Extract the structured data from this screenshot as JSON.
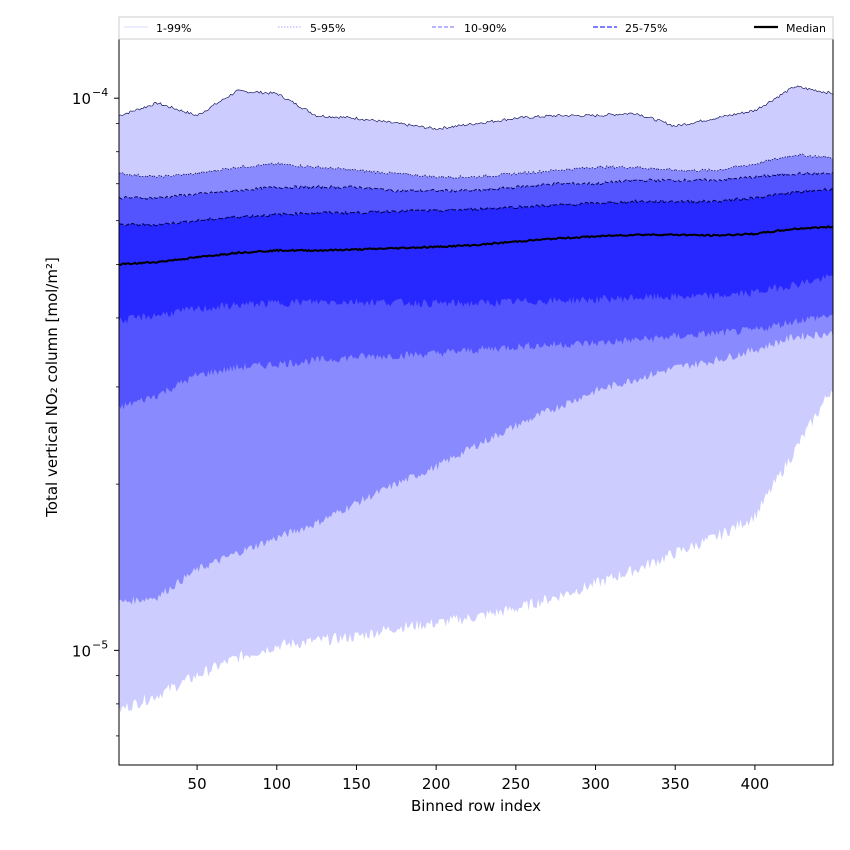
{
  "chart_data": {
    "type": "area",
    "xlabel": "Binned row index",
    "ylabel": "Total vertical NO₂ column [mol/m²]",
    "yscale": "log",
    "xlim": [
      1,
      449
    ],
    "ylim": [
      6.2e-06,
      0.000128
    ],
    "x_ticks": [
      50,
      100,
      150,
      200,
      250,
      300,
      350,
      400
    ],
    "x_tick_labels": [
      "50",
      "100",
      "150",
      "200",
      "250",
      "300",
      "350",
      "400"
    ],
    "y_ticks": [
      1e-05,
      0.0001
    ],
    "y_tick_labels": [
      {
        "base": "10",
        "exp": "−5"
      },
      {
        "base": "10",
        "exp": "−4"
      }
    ],
    "legend_position": "top, above plot",
    "legend": [
      {
        "label": "1-99%",
        "style": "thin solid",
        "color": "#ccccff"
      },
      {
        "label": "5-95%",
        "style": "dotted",
        "color": "#8a8aff"
      },
      {
        "label": "10-90%",
        "style": "dashed",
        "color": "#5454ff"
      },
      {
        "label": "25-75%",
        "style": "dashed",
        "color": "#2727ff"
      },
      {
        "label": "Median",
        "style": "solid thick",
        "color": "#000000"
      }
    ],
    "x": [
      1,
      25,
      50,
      75,
      100,
      125,
      150,
      175,
      200,
      225,
      250,
      275,
      300,
      325,
      350,
      375,
      400,
      425,
      449
    ],
    "bands": [
      {
        "name": "1-99%",
        "color": "#ccccff",
        "upper": [
          9.3e-05,
          9.8e-05,
          9.3e-05,
          0.000103,
          0.000102,
          9.3e-05,
          9.2e-05,
          9e-05,
          8.8e-05,
          9e-05,
          9.2e-05,
          9.3e-05,
          9.3e-05,
          9.4e-05,
          8.9e-05,
          9.2e-05,
          9.5e-05,
          0.000105,
          0.000102
        ],
        "lower": [
          7.8e-06,
          8.3e-06,
          9e-06,
          9.7e-06,
          1.02e-05,
          1.04e-05,
          1.06e-05,
          1.1e-05,
          1.12e-05,
          1.15e-05,
          1.19e-05,
          1.25e-05,
          1.32e-05,
          1.4e-05,
          1.5e-05,
          1.6e-05,
          1.75e-05,
          2.3e-05,
          3e-05
        ]
      },
      {
        "name": "5-95%",
        "color": "#8a8aff",
        "upper": [
          7.3e-05,
          7.2e-05,
          7.3e-05,
          7.5e-05,
          7.6e-05,
          7.5e-05,
          7.4e-05,
          7.3e-05,
          7.2e-05,
          7.2e-05,
          7.3e-05,
          7.4e-05,
          7.5e-05,
          7.5e-05,
          7.4e-05,
          7.4e-05,
          7.6e-05,
          7.9e-05,
          7.8e-05
        ],
        "lower": [
          1.22e-05,
          1.25e-05,
          1.4e-05,
          1.5e-05,
          1.6e-05,
          1.7e-05,
          1.85e-05,
          2e-05,
          2.15e-05,
          2.35e-05,
          2.55e-05,
          2.75e-05,
          2.95e-05,
          3.1e-05,
          3.25e-05,
          3.35e-05,
          3.5e-05,
          3.7e-05,
          3.75e-05
        ]
      },
      {
        "name": "10-90%",
        "color": "#5454ff",
        "upper": [
          6.6e-05,
          6.6e-05,
          6.7e-05,
          6.8e-05,
          6.9e-05,
          6.9e-05,
          6.9e-05,
          6.8e-05,
          6.8e-05,
          6.8e-05,
          6.9e-05,
          7e-05,
          7e-05,
          7.1e-05,
          7.1e-05,
          7.1e-05,
          7.2e-05,
          7.3e-05,
          7.3e-05
        ],
        "lower": [
          2.75e-05,
          2.9e-05,
          3.15e-05,
          3.25e-05,
          3.3e-05,
          3.35e-05,
          3.4e-05,
          3.42e-05,
          3.45e-05,
          3.5e-05,
          3.55e-05,
          3.58e-05,
          3.6e-05,
          3.65e-05,
          3.7e-05,
          3.75e-05,
          3.8e-05,
          3.95e-05,
          4.05e-05
        ]
      },
      {
        "name": "25-75%",
        "color": "#2727ff",
        "upper": [
          5.9e-05,
          5.9e-05,
          6e-05,
          6.1e-05,
          6.15e-05,
          6.2e-05,
          6.2e-05,
          6.25e-05,
          6.25e-05,
          6.3e-05,
          6.35e-05,
          6.4e-05,
          6.45e-05,
          6.5e-05,
          6.5e-05,
          6.5e-05,
          6.6e-05,
          6.75e-05,
          6.85e-05
        ],
        "lower": [
          3.95e-05,
          4.05e-05,
          4.15e-05,
          4.22e-05,
          4.26e-05,
          4.28e-05,
          4.28e-05,
          4.27e-05,
          4.25e-05,
          4.25e-05,
          4.28e-05,
          4.3e-05,
          4.32e-05,
          4.35e-05,
          4.37e-05,
          4.38e-05,
          4.45e-05,
          4.6e-05,
          4.75e-05
        ]
      }
    ],
    "median": {
      "name": "Median",
      "color": "#000000",
      "values": [
        5e-05,
        5.05e-05,
        5.15e-05,
        5.25e-05,
        5.3e-05,
        5.3e-05,
        5.32e-05,
        5.35e-05,
        5.38e-05,
        5.42e-05,
        5.5e-05,
        5.57e-05,
        5.62e-05,
        5.66e-05,
        5.66e-05,
        5.64e-05,
        5.68e-05,
        5.8e-05,
        5.85e-05
      ]
    }
  }
}
